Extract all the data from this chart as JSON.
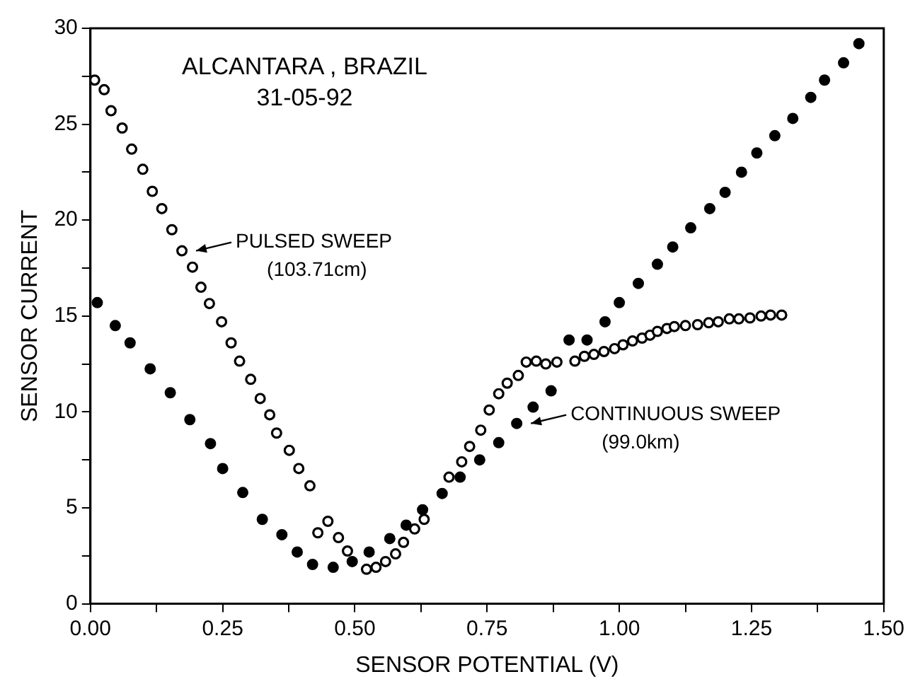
{
  "chart_data": {
    "type": "scatter",
    "xlabel": "SENSOR POTENTIAL (V)",
    "ylabel": "SENSOR CURRENT",
    "annotations": [
      "ALCANTARA , BRAZIL",
      "31-05-92",
      {
        "text": "PULSED SWEEP (103.71cm)",
        "x": 0.173,
        "y": 18.4
      },
      {
        "text": "CONTINUOUS SWEEP (99.0km)",
        "x": 0.806,
        "y": 9.4
      }
    ],
    "xlim": [
      0,
      1.5
    ],
    "xticks": [
      {
        "value": 0,
        "label": "0.00"
      },
      {
        "value": 0.125,
        "label": null
      },
      {
        "value": 0.25,
        "label": "0.25"
      },
      {
        "value": 0.375,
        "label": null
      },
      {
        "value": 0.5,
        "label": "0.50"
      },
      {
        "value": 0.625,
        "label": null
      },
      {
        "value": 0.75,
        "label": "0.75"
      },
      {
        "value": 0.875,
        "label": null
      },
      {
        "value": 1,
        "label": "1.00"
      },
      {
        "value": 1.125,
        "label": null
      },
      {
        "value": 1.25,
        "label": "1.25"
      },
      {
        "value": 1.375,
        "label": null
      },
      {
        "value": 1.5,
        "label": "1.50"
      }
    ],
    "ylim": [
      0,
      30
    ],
    "yticks": [
      0,
      {
        "value": 2.5,
        "label": null
      },
      5,
      {
        "value": 7.5,
        "label": null
      },
      10,
      {
        "value": 12.5,
        "label": null
      },
      15,
      {
        "value": 17.5,
        "label": null
      },
      20,
      {
        "value": 22.5,
        "label": null
      },
      25,
      {
        "value": 27.5,
        "label": null
      },
      30
    ],
    "grid": false,
    "legend": false,
    "series": [
      {
        "color": "#000000",
        "marker": "circle",
        "x": [
          0.008,
          0.026,
          0.039,
          0.06,
          0.078,
          0.099,
          0.117,
          0.135,
          0.154,
          0.173,
          0.193,
          0.209,
          0.225,
          0.248,
          0.266,
          0.282,
          0.303,
          0.321,
          0.339,
          0.352,
          0.376,
          0.394,
          0.415,
          0.43,
          0.449,
          0.469,
          0.486,
          0.522,
          0.54,
          0.558,
          0.577,
          0.592,
          0.613,
          0.631,
          0.678,
          0.702,
          0.717,
          0.738,
          0.754,
          0.772,
          0.788,
          0.809,
          0.824,
          0.843,
          0.861,
          0.882,
          0.916,
          0.934,
          0.952,
          0.971,
          0.991,
          1.007,
          1.025,
          1.043,
          1.058,
          1.072,
          1.09,
          1.104,
          1.125,
          1.148,
          1.169,
          1.187,
          1.208,
          1.226,
          1.247,
          1.268,
          1.286,
          1.307
        ],
        "values": [
          27.3,
          26.8,
          25.7,
          24.8,
          23.7,
          22.65,
          21.5,
          20.6,
          19.5,
          18.4,
          17.55,
          16.5,
          15.65,
          14.7,
          13.6,
          12.65,
          11.7,
          10.7,
          9.85,
          8.9,
          8.0,
          7.05,
          6.15,
          3.7,
          4.3,
          3.45,
          2.75,
          1.8,
          1.9,
          2.2,
          2.6,
          3.2,
          3.9,
          4.4,
          6.6,
          7.4,
          8.2,
          9.05,
          10.1,
          10.95,
          11.5,
          11.9,
          12.6,
          12.65,
          12.5,
          12.6,
          12.65,
          12.9,
          13.0,
          13.15,
          13.3,
          13.5,
          13.7,
          13.85,
          14.0,
          14.2,
          14.35,
          14.45,
          14.5,
          14.55,
          14.65,
          14.7,
          14.85,
          14.85,
          14.9,
          15.0,
          15.05,
          15.05
        ]
      },
      {
        "color": "#000000",
        "marker": "circle",
        "x": [
          0.013,
          0.047,
          0.075,
          0.113,
          0.151,
          0.188,
          0.227,
          0.25,
          0.288,
          0.325,
          0.362,
          0.391,
          0.42,
          0.459,
          0.495,
          0.527,
          0.566,
          0.597,
          0.628,
          0.665,
          0.699,
          0.736,
          0.772,
          0.806,
          0.837,
          0.871,
          0.905,
          0.939,
          0.973,
          1.0,
          1.036,
          1.072,
          1.101,
          1.135,
          1.171,
          1.2,
          1.231,
          1.26,
          1.294,
          1.328,
          1.362,
          1.388,
          1.424,
          1.453
        ],
        "values": [
          15.7,
          14.5,
          13.6,
          12.25,
          11.0,
          9.6,
          8.35,
          7.05,
          5.8,
          4.4,
          3.6,
          2.7,
          2.05,
          1.9,
          2.2,
          2.7,
          3.4,
          4.1,
          4.9,
          5.75,
          6.6,
          7.5,
          8.4,
          9.4,
          10.25,
          11.1,
          13.75,
          13.75,
          14.7,
          15.7,
          16.7,
          17.7,
          18.6,
          19.6,
          20.6,
          21.45,
          22.5,
          23.5,
          24.4,
          25.3,
          26.4,
          27.3,
          28.2,
          29.2
        ]
      }
    ]
  }
}
